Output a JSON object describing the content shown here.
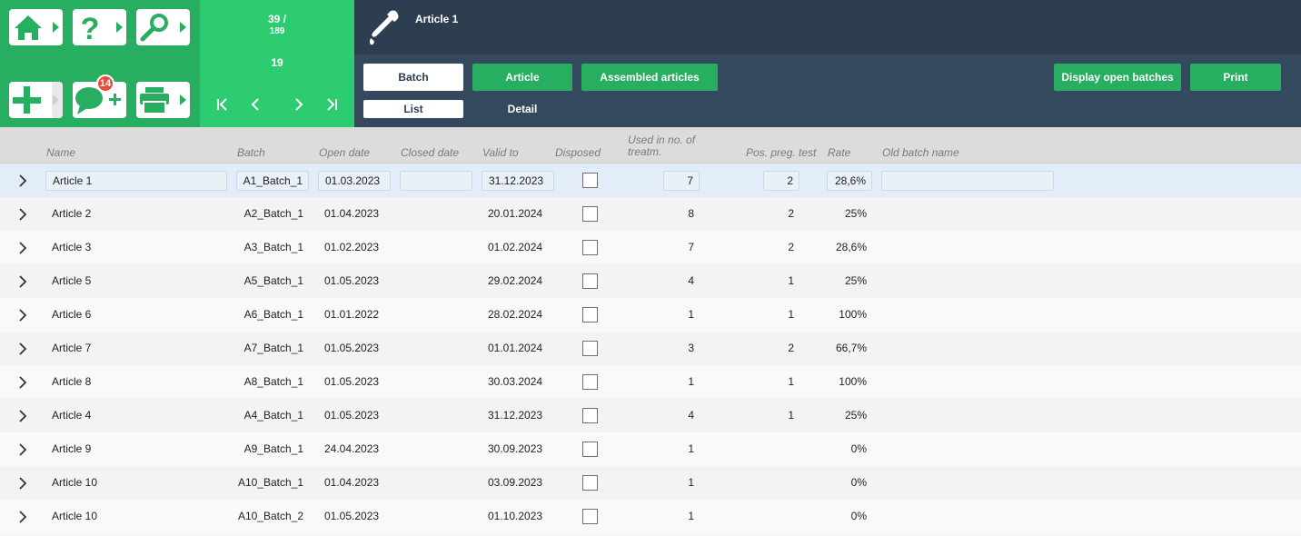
{
  "nav": {
    "badge_count": "14"
  },
  "counter": {
    "position": "39 /",
    "total": "189",
    "current": "19"
  },
  "title_bar": {
    "title": "Article 1"
  },
  "toolbar": {
    "batch_label": "Batch",
    "article_label": "Article",
    "assembled_label": "Assembled articles",
    "display_open_label": "Display open batches",
    "print_label": "Print",
    "list_label": "List",
    "detail_label": "Detail"
  },
  "table": {
    "headers": {
      "name": "Name",
      "batch": "Batch",
      "open_date": "Open date",
      "closed_date": "Closed date",
      "valid_to": "Valid to",
      "disposed": "Disposed",
      "used_line1": "Used in no. of",
      "used_line2": "treatm.",
      "pos_preg": "Pos. preg. test",
      "rate": "Rate",
      "old_batch_name": "Old batch name"
    },
    "rows": [
      {
        "name": "Article 1",
        "batch": "A1_Batch_1",
        "open_date": "01.03.2023",
        "closed_date": "",
        "valid_to": "31.12.2023",
        "used": "7",
        "pos": "2",
        "rate": "28,6%",
        "old": ""
      },
      {
        "name": "Article 2",
        "batch": "A2_Batch_1",
        "open_date": "01.04.2023",
        "closed_date": "",
        "valid_to": "20.01.2024",
        "used": "8",
        "pos": "2",
        "rate": "25%",
        "old": ""
      },
      {
        "name": "Article 3",
        "batch": "A3_Batch_1",
        "open_date": "01.02.2023",
        "closed_date": "",
        "valid_to": "01.02.2024",
        "used": "7",
        "pos": "2",
        "rate": "28,6%",
        "old": ""
      },
      {
        "name": "Article 5",
        "batch": "A5_Batch_1",
        "open_date": "01.05.2023",
        "closed_date": "",
        "valid_to": "29.02.2024",
        "used": "4",
        "pos": "1",
        "rate": "25%",
        "old": ""
      },
      {
        "name": "Article 6",
        "batch": "A6_Batch_1",
        "open_date": "01.01.2022",
        "closed_date": "",
        "valid_to": "28.02.2024",
        "used": "1",
        "pos": "1",
        "rate": "100%",
        "old": ""
      },
      {
        "name": "Article 7",
        "batch": "A7_Batch_1",
        "open_date": "01.05.2023",
        "closed_date": "",
        "valid_to": "01.01.2024",
        "used": "3",
        "pos": "2",
        "rate": "66,7%",
        "old": ""
      },
      {
        "name": "Article 8",
        "batch": "A8_Batch_1",
        "open_date": "01.05.2023",
        "closed_date": "",
        "valid_to": "30.03.2024",
        "used": "1",
        "pos": "1",
        "rate": "100%",
        "old": ""
      },
      {
        "name": "Article 4",
        "batch": "A4_Batch_1",
        "open_date": "01.05.2023",
        "closed_date": "",
        "valid_to": "31.12.2023",
        "used": "4",
        "pos": "1",
        "rate": "25%",
        "old": ""
      },
      {
        "name": "Article 9",
        "batch": "A9_Batch_1",
        "open_date": "24.04.2023",
        "closed_date": "",
        "valid_to": "30.09.2023",
        "used": "1",
        "pos": "",
        "rate": "0%",
        "old": ""
      },
      {
        "name": "Article 10",
        "batch": "A10_Batch_1",
        "open_date": "01.04.2023",
        "closed_date": "",
        "valid_to": "03.09.2023",
        "used": "1",
        "pos": "",
        "rate": "0%",
        "old": ""
      },
      {
        "name": "Article 10",
        "batch": "A10_Batch_2",
        "open_date": "01.05.2023",
        "closed_date": "",
        "valid_to": "01.10.2023",
        "used": "1",
        "pos": "",
        "rate": "0%",
        "old": ""
      }
    ]
  }
}
